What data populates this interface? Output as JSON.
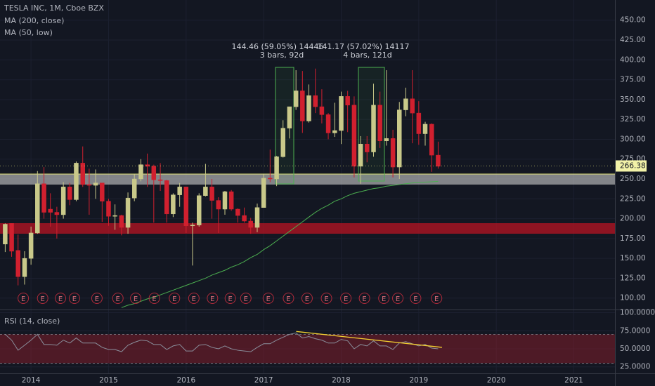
{
  "chart_data": {
    "type": "candlestick",
    "title": "TESLA INC, 1M, Cboe BZX",
    "x": [
      2013.667,
      2013.75,
      2013.833,
      2013.917,
      2014.0,
      2014.083,
      2014.167,
      2014.25,
      2014.333,
      2014.417,
      2014.5,
      2014.583,
      2014.667,
      2014.75,
      2014.833,
      2014.917,
      2015.0,
      2015.083,
      2015.167,
      2015.25,
      2015.333,
      2015.417,
      2015.5,
      2015.583,
      2015.667,
      2015.75,
      2015.833,
      2015.917,
      2016.0,
      2016.083,
      2016.167,
      2016.25,
      2016.333,
      2016.417,
      2016.5,
      2016.583,
      2016.667,
      2016.75,
      2016.833,
      2016.917,
      2017.0,
      2017.083,
      2017.167,
      2017.25,
      2017.333,
      2017.417,
      2017.5,
      2017.583,
      2017.667,
      2017.75,
      2017.833,
      2017.917,
      2018.0,
      2018.083,
      2018.167,
      2018.25,
      2018.333,
      2018.417,
      2018.5,
      2018.583,
      2018.667,
      2018.75,
      2018.833,
      2018.917,
      2019.0,
      2019.083,
      2019.167,
      2019.25
    ],
    "open": [
      168,
      194,
      160,
      127,
      150,
      182,
      244,
      212,
      208,
      205,
      240,
      224,
      270,
      243,
      242,
      245,
      222,
      203,
      204,
      189,
      226,
      250,
      268,
      266,
      249,
      248,
      206,
      230,
      240,
      191,
      192,
      229,
      240,
      223,
      212,
      234,
      212,
      204,
      197,
      189,
      214,
      251,
      250,
      278,
      314,
      341,
      361,
      323,
      355,
      341,
      331,
      308,
      311,
      354,
      343,
      266,
      294,
      284,
      343,
      298,
      301,
      265,
      337,
      351,
      333,
      307,
      319,
      280
    ],
    "high": [
      194,
      194,
      180,
      159,
      190,
      260,
      265,
      232,
      215,
      246,
      245,
      272,
      291,
      263,
      262,
      245,
      225,
      218,
      205,
      233,
      256,
      275,
      282,
      268,
      270,
      249,
      232,
      245,
      240,
      195,
      232,
      269,
      250,
      227,
      235,
      236,
      213,
      214,
      201,
      219,
      256,
      287,
      279,
      324,
      341,
      387,
      386,
      369,
      389,
      363,
      333,
      346,
      360,
      361,
      354,
      304,
      304,
      370,
      360,
      387,
      312,
      347,
      365,
      387,
      348,
      322,
      320,
      297
    ],
    "low": [
      158,
      152,
      116,
      117,
      142,
      181,
      200,
      190,
      175,
      200,
      217,
      222,
      240,
      205,
      225,
      196,
      191,
      186,
      179,
      181,
      222,
      247,
      240,
      195,
      235,
      195,
      202,
      215,
      182,
      141,
      190,
      228,
      200,
      182,
      205,
      210,
      195,
      195,
      181,
      183,
      214,
      246,
      241,
      277,
      301,
      337,
      308,
      321,
      333,
      320,
      300,
      303,
      294,
      309,
      252,
      244,
      271,
      278,
      289,
      292,
      252,
      250,
      329,
      295,
      293,
      292,
      259,
      263
    ],
    "close": [
      193,
      159,
      127,
      150,
      182,
      244,
      208,
      208,
      205,
      240,
      224,
      270,
      243,
      242,
      245,
      222,
      203,
      204,
      189,
      226,
      250,
      268,
      266,
      249,
      248,
      206,
      230,
      240,
      191,
      192,
      229,
      240,
      223,
      212,
      234,
      212,
      204,
      197,
      189,
      214,
      251,
      250,
      278,
      314,
      341,
      361,
      323,
      355,
      341,
      331,
      308,
      311,
      354,
      343,
      266,
      294,
      284,
      343,
      298,
      301,
      265,
      337,
      351,
      333,
      307,
      319,
      280,
      266
    ],
    "up_color": "#c9c98a",
    "down_color": "#d1202f",
    "xlim": [
      2013.6,
      2021.53
    ],
    "xticks": [
      2014,
      2015,
      2016,
      2017,
      2018,
      2019,
      2020,
      2021
    ],
    "ylim": [
      86.5,
      475.4
    ],
    "yticks": [
      {
        "value": 450,
        "label": "450.00"
      },
      {
        "value": 425,
        "label": "425.00"
      },
      {
        "value": 400,
        "label": "400.00"
      },
      {
        "value": 375,
        "label": "375.00"
      },
      {
        "value": 350,
        "label": "350.00"
      },
      {
        "value": 325,
        "label": "325.00"
      },
      {
        "value": 300,
        "label": "300.00"
      },
      {
        "value": 275,
        "label": "275.00"
      },
      {
        "value": 250,
        "label": "250.00"
      },
      {
        "value": 225,
        "label": "225.00"
      },
      {
        "value": 200,
        "label": "200.00"
      },
      {
        "value": 175,
        "label": "175.00"
      },
      {
        "value": 150,
        "label": "150.00"
      },
      {
        "value": 125,
        "label": "125.00"
      },
      {
        "value": 100,
        "label": "100.00"
      }
    ],
    "last_price": 266.38,
    "series": [
      {
        "name": "MA (200, close)",
        "color": "#4caf50",
        "values": [
          null,
          null,
          null,
          null,
          null,
          null,
          null,
          null,
          null,
          null,
          null,
          null,
          null,
          null,
          null,
          null,
          null,
          null,
          88,
          91,
          93,
          96,
          99,
          101,
          104,
          107,
          110,
          113,
          116,
          119,
          122,
          125,
          129,
          132,
          135,
          139,
          142,
          146,
          151,
          155,
          161,
          166,
          172,
          178,
          184,
          190,
          196,
          202,
          208,
          213,
          217,
          222,
          225,
          229,
          232,
          234,
          236,
          238,
          239,
          241,
          242,
          243,
          244,
          245,
          245.5,
          246,
          246.5,
          247
        ]
      },
      {
        "name": "MA (50, low)"
      }
    ],
    "annotations": [
      {
        "text": "144.46 (59.05%) 14446",
        "sub": "3 bars, 92d"
      },
      {
        "text": "141.17 (57.02%) 14117",
        "sub": "4 bars, 121d"
      }
    ],
    "earnings": {
      "label": "E",
      "x": [
        2013.9,
        2014.15,
        2014.38,
        2014.56,
        2014.85,
        2015.12,
        2015.35,
        2015.59,
        2015.85,
        2016.1,
        2016.34,
        2016.57,
        2016.77,
        2017.06,
        2017.32,
        2017.56,
        2017.81,
        2018.06,
        2018.3,
        2018.55,
        2018.73,
        2018.96,
        2019.23
      ]
    },
    "rsi": {
      "title": "RSI (14, close)",
      "color": "#8a8f9c",
      "values": [
        70,
        62,
        48,
        55,
        62,
        70,
        56,
        56,
        55,
        62,
        58,
        65,
        58,
        58,
        58,
        52,
        49,
        49,
        46,
        55,
        59,
        62,
        61,
        56,
        56,
        49,
        54,
        56,
        47,
        47,
        55,
        56,
        52,
        50,
        54,
        50,
        48,
        47,
        46,
        52,
        57,
        57,
        62,
        66,
        70,
        72,
        65,
        67,
        64,
        62,
        58,
        58,
        63,
        61,
        50,
        56,
        54,
        61,
        54,
        54,
        49,
        58,
        60,
        57,
        54,
        56,
        51,
        50
      ],
      "ylim": [
        16,
        101.5
      ],
      "yticks": [
        {
          "value": 100,
          "label": "100.0000"
        },
        {
          "value": 75,
          "label": "75.0000"
        },
        {
          "value": 50,
          "label": "50.0000"
        },
        {
          "value": 25,
          "label": "25.0000"
        }
      ],
      "band": [
        30,
        70
      ],
      "trendline": {
        "x": [
          2017.42,
          2019.3
        ],
        "values": [
          74,
          52
        ],
        "color": "#f5d130"
      }
    }
  }
}
